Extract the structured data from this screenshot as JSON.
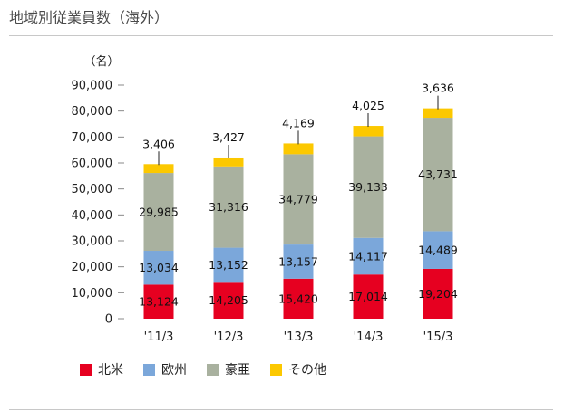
{
  "title": "地域別従業員数（海外）",
  "colors": {
    "north_america": "#e60020",
    "europe": "#7ba7da",
    "asia_pacific": "#a9b19f",
    "other": "#fcc800"
  },
  "chart_data": {
    "type": "bar",
    "stacked": true,
    "title": "地域別従業員数（海外）",
    "ylabel": "（名）",
    "xlabel": "",
    "ylim": [
      0,
      90000
    ],
    "yticks": [
      0,
      10000,
      20000,
      30000,
      40000,
      50000,
      60000,
      70000,
      80000,
      90000
    ],
    "ytick_labels": [
      "0",
      "10,000",
      "20,000",
      "30,000",
      "40,000",
      "50,000",
      "60,000",
      "70,000",
      "80,000",
      "90,000"
    ],
    "categories": [
      "'11/3",
      "'12/3",
      "'13/3",
      "'14/3",
      "'15/3"
    ],
    "legend_position": "bottom",
    "grid": false,
    "series": [
      {
        "name": "北米",
        "color": "#e60020",
        "values": [
          13124,
          14205,
          15420,
          17014,
          19204
        ],
        "labels": [
          "13,124",
          "14,205",
          "15,420",
          "17,014",
          "19,204"
        ]
      },
      {
        "name": "欧州",
        "color": "#7ba7da",
        "values": [
          13034,
          13152,
          13157,
          14117,
          14489
        ],
        "labels": [
          "13,034",
          "13,152",
          "13,157",
          "14,117",
          "14,489"
        ]
      },
      {
        "name": "豪亜",
        "color": "#a9b19f",
        "values": [
          29985,
          31316,
          34779,
          39133,
          43731
        ],
        "labels": [
          "29,985",
          "31,316",
          "34,779",
          "39,133",
          "43,731"
        ]
      },
      {
        "name": "その他",
        "color": "#fcc800",
        "values": [
          3406,
          3427,
          4169,
          4025,
          3636
        ],
        "labels": [
          "3,406",
          "3,427",
          "4,169",
          "4,025",
          "3,636"
        ]
      }
    ]
  }
}
